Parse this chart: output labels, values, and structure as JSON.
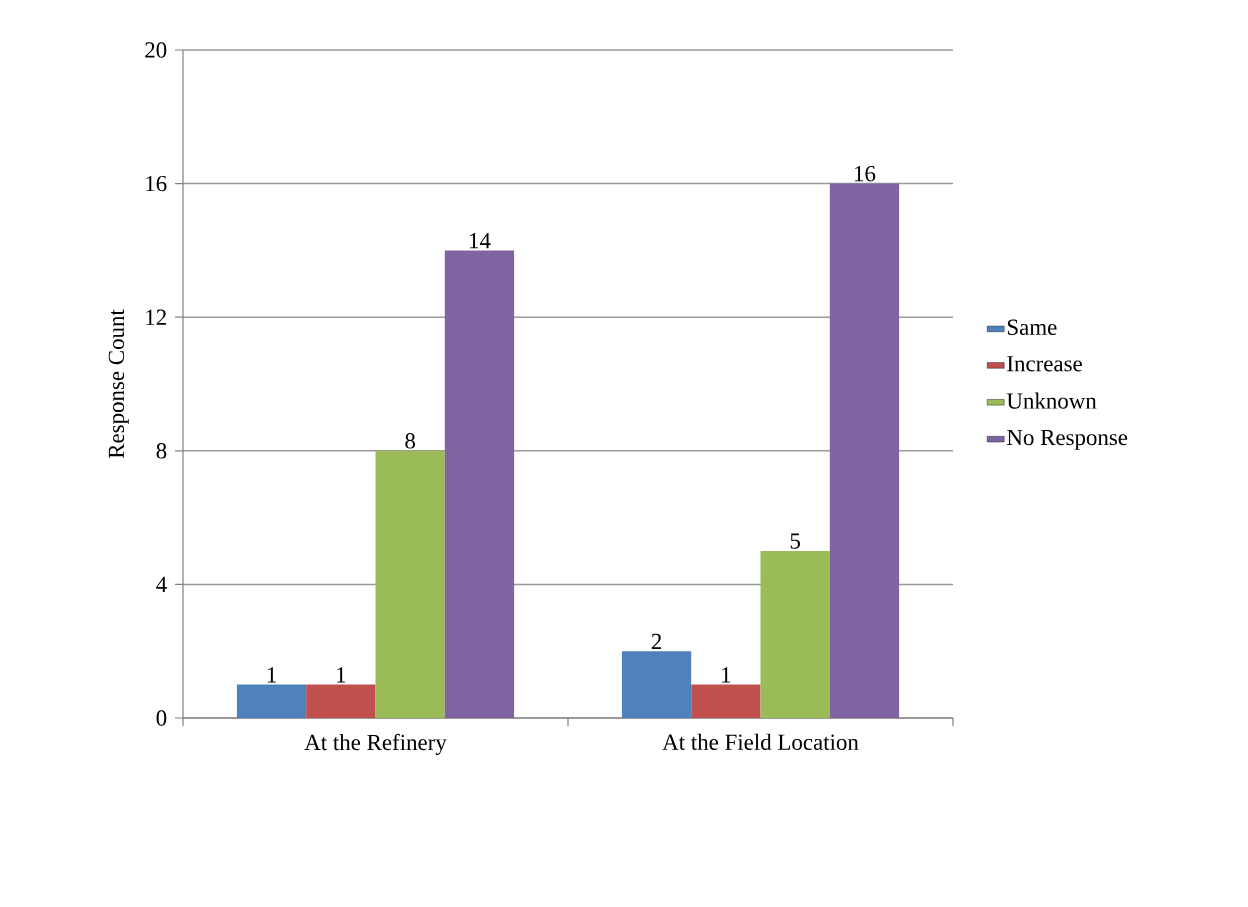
{
  "chart_data": {
    "type": "bar",
    "ylabel": "Response Count",
    "categories": [
      "At the Refinery",
      "At the Field Location"
    ],
    "series": [
      {
        "name": "Same",
        "color": "#4f81bd",
        "values": [
          1,
          2
        ]
      },
      {
        "name": "Increase",
        "color": "#c0504d",
        "values": [
          1,
          1
        ]
      },
      {
        "name": "Unknown",
        "color": "#9bbb59",
        "values": [
          8,
          5
        ]
      },
      {
        "name": "No Response",
        "color": "#8064a2",
        "values": [
          14,
          16
        ]
      }
    ],
    "ylim": [
      0,
      20
    ],
    "yticks": [
      0,
      4,
      8,
      12,
      16,
      20
    ],
    "grid": "y",
    "legend": "right",
    "data_labels": true
  }
}
